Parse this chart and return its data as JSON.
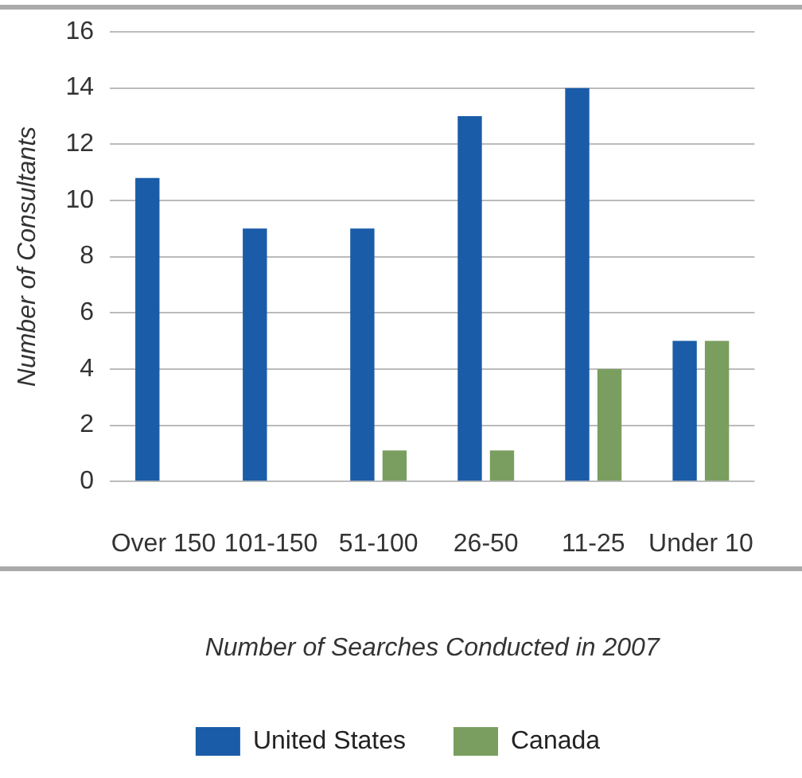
{
  "chart_data": {
    "type": "bar",
    "xlabel": "Number of Searches Conducted in 2007",
    "ylabel": "Number of Consultants",
    "categories": [
      "Over 150",
      "101-150",
      "51-100",
      "26-50",
      "11-25",
      "Under 10"
    ],
    "series": [
      {
        "name": "United States",
        "color": "#1a5ca8",
        "values": [
          10.8,
          9,
          9,
          13,
          14,
          5
        ]
      },
      {
        "name": "Canada",
        "color": "#7a9e5f",
        "values": [
          0,
          0,
          1.1,
          1.1,
          4,
          5
        ]
      }
    ],
    "ylim": [
      0,
      16
    ],
    "yticks": [
      0,
      2,
      4,
      6,
      8,
      10,
      12,
      14,
      16
    ],
    "grid": "y",
    "legend": "bottom"
  }
}
